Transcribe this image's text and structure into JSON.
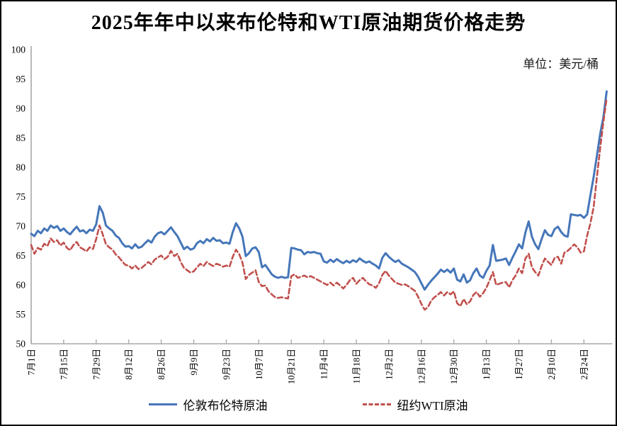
{
  "page": {
    "title": "2025年年中以来布伦特和WTI原油期货价格走势",
    "unit_label": "单位：美元/桶"
  },
  "legend": {
    "brent_label": "伦敦布伦特原油",
    "wti_label": "纽约WTI原油"
  },
  "colors": {
    "brent_blue": "#4576b9",
    "wti_red": "#c0504d",
    "axis_gray": "#a9a9a9"
  },
  "chart_data": {
    "type": "line",
    "title": "2025年年中以来布伦特和WTI原油期货价格走势",
    "unit": "美元/桶",
    "ylim": [
      50,
      100
    ],
    "y_tick_step": 5,
    "grid": false,
    "legend_position": "bottom",
    "x_tick_interval": 10,
    "x_tick_labels": [
      "7月1日",
      "7月15日",
      "7月29日",
      "8月12日",
      "8月26日",
      "9月9日",
      "9月23日",
      "10月7日",
      "10月21日",
      "11月4日",
      "11月18日",
      "12月2日",
      "12月16日",
      "12月30日",
      "1月13日",
      "1月27日",
      "2月10日",
      "2月24日"
    ],
    "series": [
      {
        "key": "brent",
        "name": "伦敦布伦特原油",
        "color": "#4576b9",
        "line": "solid",
        "values": [
          68.7,
          68.3,
          69.2,
          68.8,
          69.6,
          69.2,
          70.1,
          69.7,
          70.0,
          69.2,
          69.6,
          69.0,
          68.6,
          69.3,
          69.9,
          69.1,
          69.3,
          68.8,
          69.4,
          69.2,
          70.3,
          73.4,
          72.3,
          70.1,
          69.6,
          69.2,
          68.4,
          68.0,
          67.1,
          66.5,
          66.6,
          66.2,
          66.9,
          66.3,
          66.5,
          67.1,
          67.6,
          67.2,
          68.2,
          68.8,
          69.0,
          68.6,
          69.2,
          69.8,
          69.0,
          68.3,
          67.2,
          66.1,
          66.5,
          66.0,
          66.2,
          67.1,
          67.5,
          67.1,
          67.8,
          67.4,
          68.0,
          67.5,
          67.6,
          67.1,
          67.2,
          67.0,
          69.0,
          70.5,
          69.6,
          68.2,
          64.9,
          65.4,
          66.2,
          66.4,
          65.6,
          63.0,
          63.4,
          62.6,
          61.8,
          61.4,
          61.2,
          61.4,
          61.2,
          61.3,
          66.3,
          66.2,
          66.0,
          65.9,
          65.2,
          65.6,
          65.5,
          65.6,
          65.4,
          65.3,
          64.0,
          63.8,
          64.3,
          63.9,
          64.4,
          64.0,
          63.7,
          64.1,
          63.8,
          64.2,
          63.9,
          64.5,
          64.1,
          63.8,
          64.0,
          63.6,
          63.3,
          62.8,
          64.6,
          65.4,
          64.8,
          64.3,
          63.9,
          64.2,
          63.6,
          63.3,
          63.0,
          62.6,
          62.2,
          61.4,
          60.3,
          59.2,
          60.0,
          60.7,
          61.3,
          61.9,
          62.6,
          62.2,
          62.6,
          62.1,
          62.8,
          60.9,
          60.6,
          61.8,
          60.4,
          60.8,
          62.0,
          62.8,
          61.6,
          61.2,
          62.4,
          63.3,
          66.8,
          64.1,
          64.2,
          64.3,
          64.5,
          63.4,
          64.6,
          65.7,
          66.9,
          66.2,
          68.9,
          70.8,
          68.2,
          66.9,
          66.1,
          67.8,
          69.3,
          68.5,
          68.3,
          69.5,
          69.9,
          69.0,
          68.4,
          68.2,
          72.0,
          71.9,
          71.8,
          71.9,
          71.4,
          72.0,
          75.3,
          78.4,
          82.0,
          85.7,
          88.5,
          92.9
        ]
      },
      {
        "key": "wti",
        "name": "纽约WTI原油",
        "color": "#c0504d",
        "line": "dashed",
        "values": [
          66.8,
          65.3,
          66.3,
          66.0,
          67.0,
          66.6,
          67.9,
          67.3,
          67.6,
          66.7,
          67.2,
          66.3,
          65.9,
          66.8,
          67.3,
          66.4,
          66.1,
          65.7,
          66.4,
          66.1,
          67.8,
          70.1,
          68.6,
          66.9,
          66.4,
          66.0,
          65.2,
          64.7,
          64.0,
          63.4,
          63.3,
          62.8,
          63.3,
          62.7,
          62.9,
          63.4,
          63.9,
          63.5,
          64.3,
          64.7,
          65.0,
          64.4,
          64.8,
          65.8,
          64.9,
          65.3,
          63.9,
          62.9,
          62.5,
          62.1,
          62.3,
          63.0,
          63.6,
          63.2,
          63.9,
          63.5,
          63.2,
          63.6,
          63.4,
          63.1,
          63.3,
          63.1,
          64.8,
          66.0,
          65.2,
          63.8,
          61.0,
          61.7,
          62.1,
          62.5,
          60.5,
          59.8,
          59.9,
          58.9,
          58.4,
          57.9,
          57.8,
          57.9,
          57.8,
          57.7,
          61.5,
          61.8,
          61.2,
          61.4,
          61.6,
          61.3,
          61.5,
          61.2,
          60.9,
          60.6,
          60.3,
          60.0,
          60.4,
          59.9,
          60.4,
          59.9,
          59.4,
          60.0,
          60.8,
          61.2,
          60.2,
          60.8,
          61.2,
          60.6,
          60.1,
          59.9,
          59.5,
          60.3,
          61.7,
          62.4,
          61.6,
          61.0,
          60.4,
          60.2,
          60.0,
          60.1,
          59.8,
          59.4,
          59.0,
          58.0,
          56.8,
          55.8,
          56.2,
          57.3,
          57.9,
          58.3,
          58.8,
          58.2,
          58.8,
          58.4,
          58.9,
          56.9,
          56.4,
          57.6,
          56.7,
          57.2,
          58.3,
          58.8,
          58.0,
          58.6,
          59.5,
          60.8,
          62.2,
          60.0,
          60.2,
          60.4,
          60.5,
          59.6,
          60.8,
          61.6,
          62.8,
          62.0,
          64.5,
          65.3,
          63.0,
          62.2,
          61.6,
          63.2,
          64.5,
          63.9,
          63.4,
          64.6,
          64.8,
          63.6,
          65.5,
          65.8,
          66.3,
          66.9,
          66.4,
          65.5,
          65.7,
          68.4,
          70.5,
          73.3,
          78.4,
          83.3,
          87.7,
          91.7
        ]
      }
    ]
  }
}
